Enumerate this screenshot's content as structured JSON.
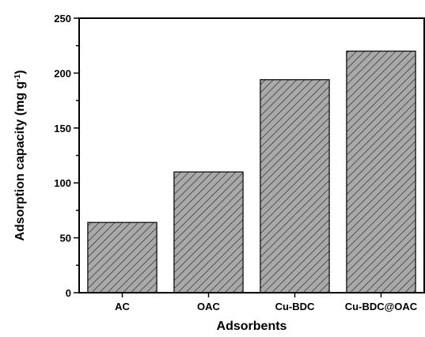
{
  "chart_data": {
    "type": "bar",
    "categories": [
      "AC",
      "OAC",
      "Cu-BDC",
      "Cu-BDC@OAC"
    ],
    "values": [
      64,
      110,
      194,
      220
    ],
    "xlabel": "Adsorbents",
    "ylabel": {
      "main": "Adsorption capacity (mg g",
      "superscript": "-1",
      "closing": ")"
    },
    "ylim": [
      0,
      250
    ],
    "y_major_ticks": [
      0,
      50,
      100,
      150,
      200,
      250
    ],
    "y_minor_step": 25,
    "grid": false,
    "legend": "none",
    "bar_fill": "diagonal-hatch",
    "colors": {
      "bar_background": "#a9a9a9",
      "hatch": "#3a3a3a",
      "axis": "#000000"
    }
  }
}
